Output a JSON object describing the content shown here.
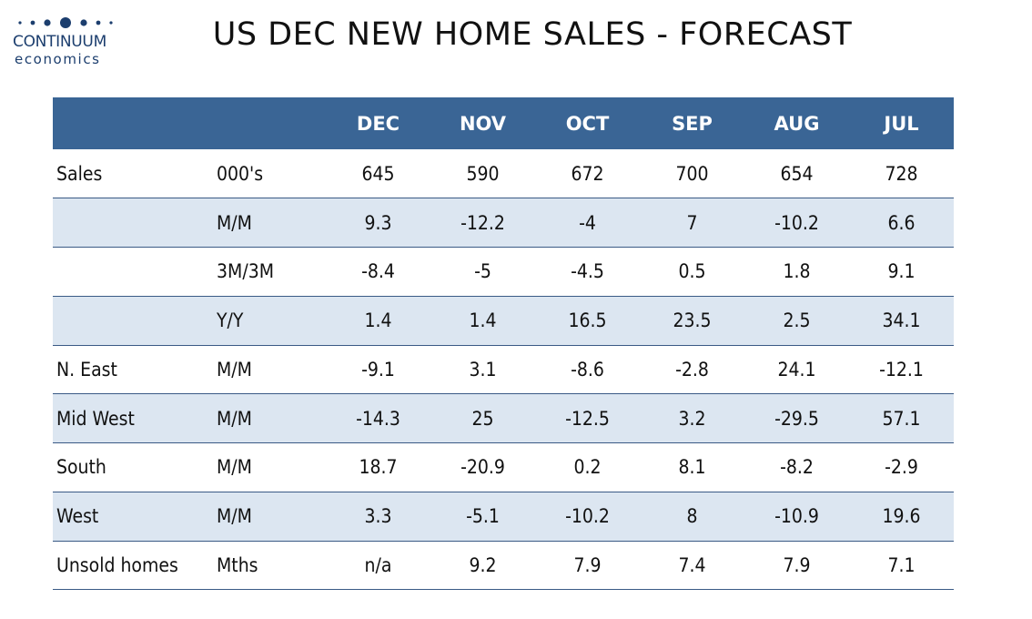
{
  "logo": {
    "name": "CONTINUUM",
    "sub": "economics",
    "color": "#1c3e6e"
  },
  "title": "US DEC NEW HOME SALES - FORECAST",
  "table": {
    "header_color": "#3a6595",
    "shade_color": "#dce6f1",
    "columns": [
      "",
      "",
      "DEC",
      "NOV",
      "OCT",
      "SEP",
      "AUG",
      "JUL"
    ],
    "rows": [
      {
        "label": "Sales",
        "unit": "000's",
        "values": [
          "645",
          "590",
          "672",
          "700",
          "654",
          "728"
        ]
      },
      {
        "label": "",
        "unit": "M/M",
        "values": [
          "9.3",
          "-12.2",
          "-4",
          "7",
          "-10.2",
          "6.6"
        ]
      },
      {
        "label": "",
        "unit": "3M/3M",
        "values": [
          "-8.4",
          "-5",
          "-4.5",
          "0.5",
          "1.8",
          "9.1"
        ]
      },
      {
        "label": "",
        "unit": "Y/Y",
        "values": [
          "1.4",
          "1.4",
          "16.5",
          "23.5",
          "2.5",
          "34.1"
        ]
      },
      {
        "label": "N. East",
        "unit": "M/M",
        "values": [
          "-9.1",
          "3.1",
          "-8.6",
          "-2.8",
          "24.1",
          "-12.1"
        ]
      },
      {
        "label": "Mid West",
        "unit": "M/M",
        "values": [
          "-14.3",
          "25",
          "-12.5",
          "3.2",
          "-29.5",
          "57.1"
        ]
      },
      {
        "label": "South",
        "unit": "M/M",
        "values": [
          "18.7",
          "-20.9",
          "0.2",
          "8.1",
          "-8.2",
          "-2.9"
        ]
      },
      {
        "label": "West",
        "unit": "M/M",
        "values": [
          "3.3",
          "-5.1",
          "-10.2",
          "8",
          "-10.9",
          "19.6"
        ]
      },
      {
        "label": "Unsold homes",
        "unit": "Mths",
        "values": [
          "n/a",
          "9.2",
          "7.9",
          "7.4",
          "7.9",
          "7.1"
        ]
      }
    ]
  }
}
